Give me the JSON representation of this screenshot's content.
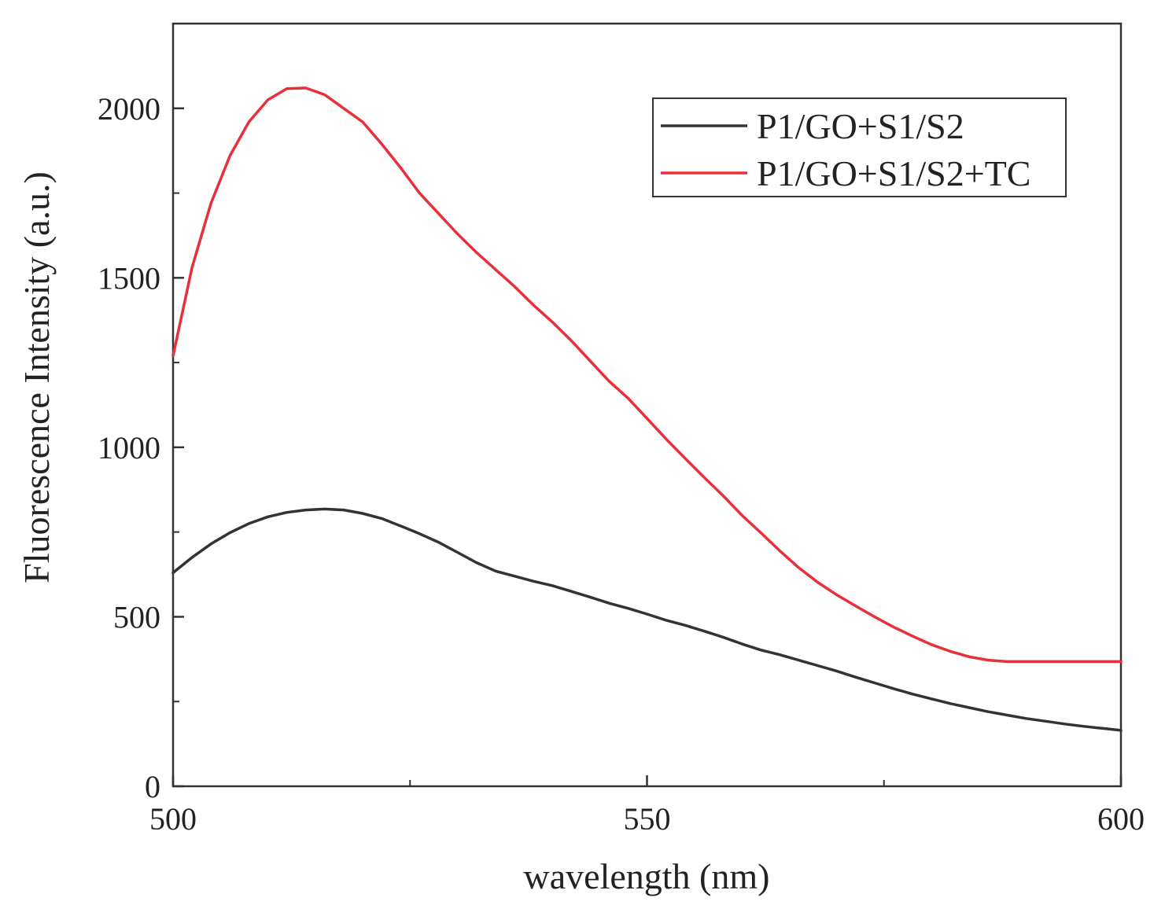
{
  "chart_data": {
    "type": "line",
    "title": "",
    "xlabel": "wavelength (nm)",
    "ylabel": "Fluorescence Intensity (a.u.)",
    "xlim": [
      500,
      600
    ],
    "ylim": [
      0,
      2250
    ],
    "x_major_ticks": [
      500,
      550,
      600
    ],
    "x_minor_ticks": [
      525,
      575
    ],
    "y_major_ticks": [
      0,
      500,
      1000,
      1500,
      2000
    ],
    "y_minor_ticks": [
      250,
      750,
      1250,
      1750
    ],
    "legend_position": "top-right",
    "grid": false,
    "series": [
      {
        "name": "P1/GO+S1/S2",
        "color": "#333333",
        "x": [
          500,
          502,
          504,
          506,
          508,
          510,
          512,
          514,
          516,
          518,
          520,
          522,
          524,
          526,
          528,
          530,
          532,
          534,
          536,
          538,
          540,
          542,
          544,
          546,
          548,
          550,
          552,
          554,
          556,
          558,
          560,
          562,
          564,
          566,
          568,
          570,
          572,
          574,
          576,
          578,
          580,
          582,
          584,
          586,
          588,
          590,
          592,
          594,
          596,
          598,
          600
        ],
        "values": [
          630,
          675,
          715,
          748,
          775,
          795,
          808,
          815,
          818,
          815,
          805,
          790,
          768,
          745,
          720,
          690,
          660,
          635,
          620,
          605,
          592,
          575,
          558,
          540,
          525,
          508,
          490,
          475,
          458,
          440,
          420,
          402,
          388,
          372,
          356,
          340,
          322,
          305,
          288,
          272,
          258,
          244,
          232,
          220,
          210,
          200,
          192,
          184,
          177,
          171,
          165
        ]
      },
      {
        "name": "P1/GO+S1/S2+TC",
        "color": "#e8303a",
        "x": [
          500,
          502,
          504,
          506,
          508,
          510,
          512,
          514,
          516,
          518,
          520,
          522,
          524,
          526,
          528,
          530,
          532,
          534,
          536,
          538,
          540,
          542,
          544,
          546,
          548,
          550,
          552,
          554,
          556,
          558,
          560,
          562,
          564,
          566,
          568,
          570,
          572,
          574,
          576,
          578,
          580,
          582,
          584,
          586,
          588,
          590,
          592,
          594,
          596,
          598,
          600
        ],
        "values": [
          1270,
          1530,
          1720,
          1860,
          1960,
          2025,
          2058,
          2060,
          2040,
          2000,
          1960,
          1895,
          1825,
          1750,
          1690,
          1630,
          1575,
          1525,
          1475,
          1420,
          1370,
          1315,
          1255,
          1195,
          1145,
          1085,
          1025,
          968,
          912,
          858,
          800,
          748,
          695,
          645,
          602,
          565,
          532,
          500,
          470,
          443,
          418,
          398,
          382,
          372,
          368,
          368,
          368,
          368,
          368,
          368,
          368
        ]
      }
    ]
  }
}
